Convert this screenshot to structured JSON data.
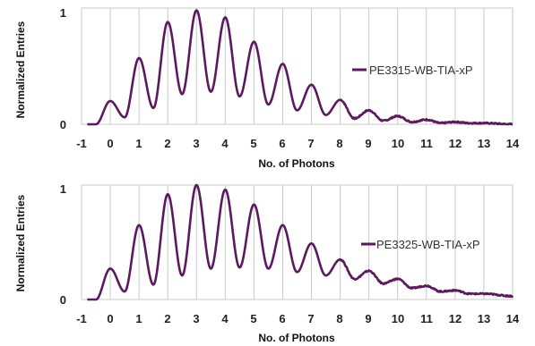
{
  "chart_data": [
    {
      "type": "line",
      "xlabel": "No. of Photons",
      "ylabel": "Normalized Entries",
      "xlim": [
        -1,
        14
      ],
      "ylim": [
        0,
        1
      ],
      "x_ticks": [
        "-1",
        "0",
        "1",
        "2",
        "3",
        "4",
        "5",
        "6",
        "7",
        "8",
        "9",
        "10",
        "11",
        "12",
        "13",
        "14"
      ],
      "y_ticks": [
        "0",
        "1"
      ],
      "grid": true,
      "legend_position": "right",
      "series": [
        {
          "name": "PE3315-WB-TIA-xP",
          "color": "#5b1a5e",
          "peaks": [
            {
              "x": 0,
              "y": 0.2
            },
            {
              "x": 1,
              "y": 0.57
            },
            {
              "x": 2,
              "y": 0.88
            },
            {
              "x": 3,
              "y": 0.98
            },
            {
              "x": 4,
              "y": 0.92
            },
            {
              "x": 5,
              "y": 0.71
            },
            {
              "x": 6,
              "y": 0.52
            },
            {
              "x": 7,
              "y": 0.34
            },
            {
              "x": 8,
              "y": 0.21
            },
            {
              "x": 9,
              "y": 0.12
            },
            {
              "x": 10,
              "y": 0.07
            },
            {
              "x": 11,
              "y": 0.04
            },
            {
              "x": 12,
              "y": 0.02
            },
            {
              "x": 13,
              "y": 0.01
            }
          ],
          "valleys": [
            {
              "x": -0.5,
              "y": 0.0
            },
            {
              "x": 0.5,
              "y": 0.06
            },
            {
              "x": 1.5,
              "y": 0.14
            },
            {
              "x": 2.5,
              "y": 0.26
            },
            {
              "x": 3.5,
              "y": 0.28
            },
            {
              "x": 4.5,
              "y": 0.24
            },
            {
              "x": 5.5,
              "y": 0.17
            },
            {
              "x": 6.5,
              "y": 0.12
            },
            {
              "x": 7.5,
              "y": 0.08
            },
            {
              "x": 8.5,
              "y": 0.05
            },
            {
              "x": 9.5,
              "y": 0.03
            },
            {
              "x": 10.5,
              "y": 0.02
            },
            {
              "x": 11.5,
              "y": 0.01
            },
            {
              "x": 12.5,
              "y": 0.01
            },
            {
              "x": 14,
              "y": 0.0
            }
          ]
        }
      ]
    },
    {
      "type": "line",
      "xlabel": "No. of Photons",
      "ylabel": "Normalized Entries",
      "xlim": [
        -1,
        14
      ],
      "ylim": [
        0,
        1
      ],
      "x_ticks": [
        "-1",
        "0",
        "1",
        "2",
        "3",
        "4",
        "5",
        "6",
        "7",
        "8",
        "9",
        "10",
        "11",
        "12",
        "13",
        "14"
      ],
      "y_ticks": [
        "0",
        "1"
      ],
      "grid": true,
      "legend_position": "right",
      "series": [
        {
          "name": "PE3325-WB-TIA-xP",
          "color": "#5b1a5e",
          "peaks": [
            {
              "x": 0,
              "y": 0.27
            },
            {
              "x": 1,
              "y": 0.65
            },
            {
              "x": 2,
              "y": 0.92
            },
            {
              "x": 3,
              "y": 1.0
            },
            {
              "x": 4,
              "y": 0.96
            },
            {
              "x": 5,
              "y": 0.83
            },
            {
              "x": 6,
              "y": 0.65
            },
            {
              "x": 7,
              "y": 0.49
            },
            {
              "x": 8,
              "y": 0.35
            },
            {
              "x": 9,
              "y": 0.25
            },
            {
              "x": 10,
              "y": 0.18
            },
            {
              "x": 11,
              "y": 0.12
            },
            {
              "x": 12,
              "y": 0.08
            },
            {
              "x": 13,
              "y": 0.05
            }
          ],
          "valleys": [
            {
              "x": -0.5,
              "y": 0.0
            },
            {
              "x": 0.5,
              "y": 0.07
            },
            {
              "x": 1.5,
              "y": 0.13
            },
            {
              "x": 2.5,
              "y": 0.21
            },
            {
              "x": 3.5,
              "y": 0.27
            },
            {
              "x": 4.5,
              "y": 0.28
            },
            {
              "x": 5.5,
              "y": 0.27
            },
            {
              "x": 6.5,
              "y": 0.24
            },
            {
              "x": 7.5,
              "y": 0.21
            },
            {
              "x": 8.5,
              "y": 0.18
            },
            {
              "x": 9.5,
              "y": 0.14
            },
            {
              "x": 10.5,
              "y": 0.1
            },
            {
              "x": 11.5,
              "y": 0.07
            },
            {
              "x": 12.5,
              "y": 0.05
            },
            {
              "x": 14,
              "y": 0.03
            }
          ]
        }
      ]
    }
  ]
}
